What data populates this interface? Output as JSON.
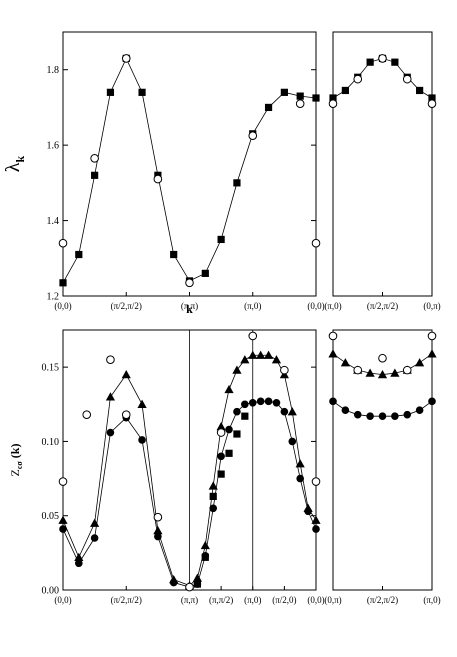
{
  "figure_title": "",
  "chart_data": [
    {
      "id": "lambda_path",
      "type": "line",
      "ylabel_main": "λ",
      "ylabel_sub": "k",
      "xlabel": "k",
      "ylim": [
        1.2,
        1.9
      ],
      "yticks": [
        "1.2",
        "1.4",
        "1.6",
        "1.8"
      ],
      "ytick_values": [
        1.2,
        1.4,
        1.6,
        1.8
      ],
      "xlim": [
        0,
        16
      ],
      "categories": [
        {
          "x": 0,
          "label": "(0,0)"
        },
        {
          "x": 4,
          "label": "(π/2,π/2)"
        },
        {
          "x": 8,
          "label": "(π,π)"
        },
        {
          "x": 12,
          "label": "(π,0)"
        },
        {
          "x": 16,
          "label": "(0,0)"
        }
      ],
      "grid": false,
      "series": [
        {
          "marker": "square-filled",
          "x": [
            0,
            1,
            2,
            3,
            4,
            5,
            6,
            7,
            8,
            9,
            10,
            11,
            12,
            13,
            14,
            15,
            16
          ],
          "values": [
            1.235,
            1.31,
            1.52,
            1.74,
            1.83,
            1.74,
            1.52,
            1.31,
            1.24,
            1.26,
            1.35,
            1.5,
            1.63,
            1.7,
            1.74,
            1.73,
            1.725
          ],
          "line": true
        },
        {
          "marker": "circle-open",
          "x": [
            0,
            2,
            4,
            6,
            8,
            12,
            15,
            16
          ],
          "values": [
            1.34,
            1.565,
            1.83,
            1.51,
            1.235,
            1.625,
            1.71,
            1.34
          ],
          "line": false
        }
      ]
    },
    {
      "id": "lambda_side",
      "type": "line",
      "ylim": [
        1.2,
        1.9
      ],
      "xlim": [
        0,
        8
      ],
      "categories": [
        {
          "x": 0,
          "label": "(π,0)"
        },
        {
          "x": 4,
          "label": "(π/2,π/2)"
        },
        {
          "x": 8,
          "label": "(0,π)"
        }
      ],
      "grid": false,
      "series": [
        {
          "marker": "square-filled",
          "x": [
            0,
            1,
            2,
            3,
            4,
            5,
            6,
            7,
            8
          ],
          "values": [
            1.725,
            1.745,
            1.78,
            1.82,
            1.83,
            1.82,
            1.78,
            1.745,
            1.725
          ],
          "line": true
        },
        {
          "marker": "circle-open",
          "x": [
            0,
            2,
            4,
            6,
            8
          ],
          "values": [
            1.71,
            1.775,
            1.83,
            1.775,
            1.71
          ],
          "line": false
        }
      ]
    },
    {
      "id": "z_path",
      "type": "line",
      "ylabel_main": "Z",
      "ylabel_sub": "cσ",
      "ylabel_suffix": " (k)",
      "ylim": [
        0.0,
        0.175
      ],
      "yticks": [
        "0.00",
        "0.05",
        "0.10",
        "0.15"
      ],
      "ytick_values": [
        0.0,
        0.05,
        0.1,
        0.15
      ],
      "xlim": [
        0,
        16
      ],
      "categories": [
        {
          "x": 0,
          "label": "(0,0)"
        },
        {
          "x": 4,
          "label": "(π/2,π/2)"
        },
        {
          "x": 8,
          "label": "(π,π)"
        },
        {
          "x": 10,
          "label": "(π,π/2)"
        },
        {
          "x": 12,
          "label": "(π,0)"
        },
        {
          "x": 14,
          "label": "(π/2,0)"
        },
        {
          "x": 16,
          "label": "(0,0)"
        }
      ],
      "vlines": [
        8,
        12
      ],
      "grid": false,
      "series": [
        {
          "marker": "triangle-filled",
          "x": [
            0,
            1,
            2,
            3,
            4,
            5,
            6,
            7,
            8,
            8.5,
            9,
            9.5,
            10,
            10.5,
            11,
            11.5,
            12,
            12.5,
            13,
            13.5,
            14,
            14.5,
            15,
            15.5,
            16
          ],
          "values": [
            0.047,
            0.022,
            0.045,
            0.13,
            0.145,
            0.125,
            0.04,
            0.007,
            0.003,
            0.008,
            0.03,
            0.07,
            0.11,
            0.135,
            0.148,
            0.155,
            0.158,
            0.158,
            0.158,
            0.155,
            0.145,
            0.12,
            0.085,
            0.055,
            0.047
          ],
          "line": true
        },
        {
          "marker": "circle-filled",
          "x": [
            0,
            1,
            2,
            3,
            4,
            5,
            6,
            7,
            8,
            8.5,
            9,
            9.5,
            10,
            10.5,
            11,
            11.5,
            12,
            12.5,
            13,
            13.5,
            14,
            14.5,
            15,
            15.5,
            16
          ],
          "values": [
            0.041,
            0.018,
            0.035,
            0.106,
            0.116,
            0.101,
            0.036,
            0.005,
            0.002,
            0.004,
            0.023,
            0.055,
            0.09,
            0.108,
            0.12,
            0.125,
            0.126,
            0.127,
            0.127,
            0.126,
            0.12,
            0.1,
            0.075,
            0.053,
            0.041
          ],
          "line": true
        },
        {
          "marker": "square-filled",
          "x": [
            8.5,
            9,
            9.5,
            10,
            10.5,
            11,
            11.5
          ],
          "values": [
            0.004,
            0.022,
            0.063,
            0.078,
            0.092,
            0.105,
            0.117
          ],
          "line": false
        },
        {
          "marker": "circle-open",
          "x": [
            0,
            1.5,
            3,
            4,
            6,
            8,
            10,
            12,
            14,
            16
          ],
          "values": [
            0.073,
            0.118,
            0.155,
            0.118,
            0.049,
            0.002,
            0.106,
            0.171,
            0.148,
            0.073
          ],
          "line": false
        }
      ]
    },
    {
      "id": "z_side",
      "type": "line",
      "ylim": [
        0.0,
        0.175
      ],
      "xlim": [
        0,
        8
      ],
      "categories": [
        {
          "x": 0,
          "label": "(0,π)"
        },
        {
          "x": 4,
          "label": "(π/2,π/2)"
        },
        {
          "x": 8,
          "label": "(π,0)"
        }
      ],
      "grid": false,
      "series": [
        {
          "marker": "triangle-filled",
          "x": [
            0,
            1,
            2,
            3,
            4,
            5,
            6,
            7,
            8
          ],
          "values": [
            0.159,
            0.153,
            0.148,
            0.146,
            0.145,
            0.146,
            0.148,
            0.153,
            0.159
          ],
          "line": true
        },
        {
          "marker": "circle-filled",
          "x": [
            0,
            1,
            2,
            3,
            4,
            5,
            6,
            7,
            8
          ],
          "values": [
            0.127,
            0.121,
            0.118,
            0.117,
            0.117,
            0.117,
            0.118,
            0.121,
            0.127
          ],
          "line": true
        },
        {
          "marker": "circle-open",
          "x": [
            0,
            2,
            4,
            6,
            8
          ],
          "values": [
            0.171,
            0.148,
            0.156,
            0.148,
            0.171
          ],
          "line": false
        }
      ]
    }
  ]
}
